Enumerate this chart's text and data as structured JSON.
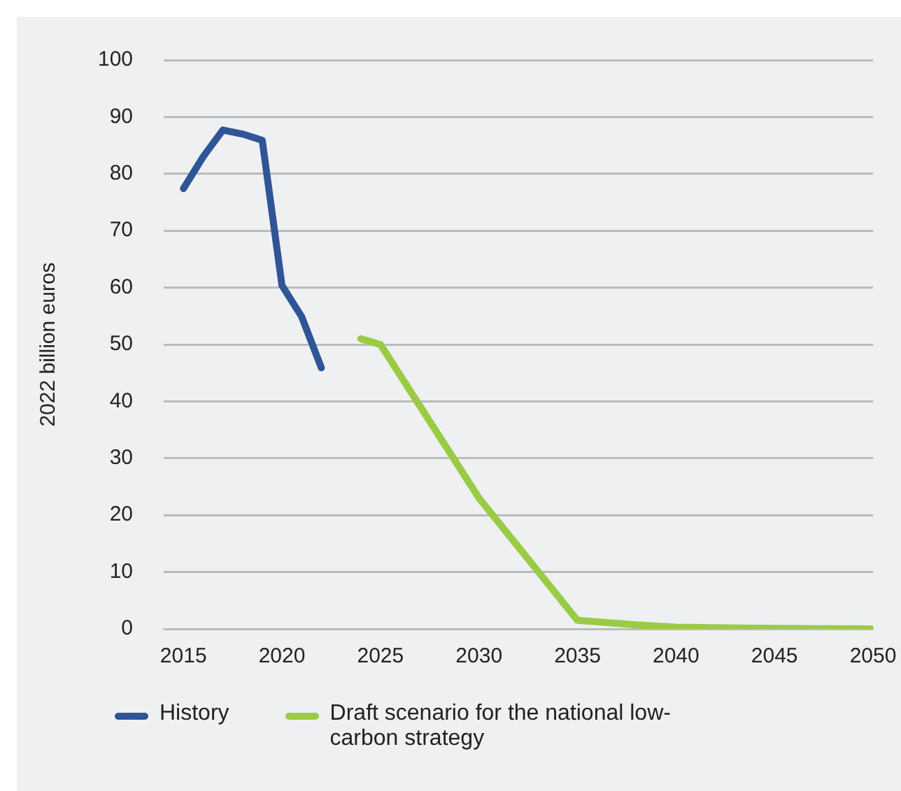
{
  "chart_data": {
    "type": "line",
    "ylabel": "2022 billion euros",
    "xlim": [
      2014,
      2050
    ],
    "xticks": [
      2015,
      2020,
      2025,
      2030,
      2035,
      2040,
      2045,
      2050
    ],
    "ylim": [
      0,
      100
    ],
    "yticks": [
      0,
      10,
      20,
      30,
      40,
      50,
      60,
      70,
      80,
      90,
      100
    ],
    "grid": "y",
    "legend": "bottom",
    "marker": "none",
    "line_style": "solid",
    "series": [
      {
        "name": "History",
        "color": "#2f5597",
        "x": [
          2015,
          2016,
          2017,
          2018,
          2019,
          2020,
          2021,
          2022
        ],
        "values": [
          77.4,
          83,
          87.7,
          87,
          85.9,
          60.4,
          54.9,
          45.9
        ]
      },
      {
        "name": "Draft scenario for the national low-carbon strategy",
        "color": "#99cc44",
        "x": [
          2024,
          2025,
          2030,
          2035,
          2038,
          2040,
          2045,
          2050
        ],
        "values": [
          51,
          50,
          23,
          1.5,
          0.7,
          0.3,
          0.1,
          0
        ]
      }
    ]
  }
}
